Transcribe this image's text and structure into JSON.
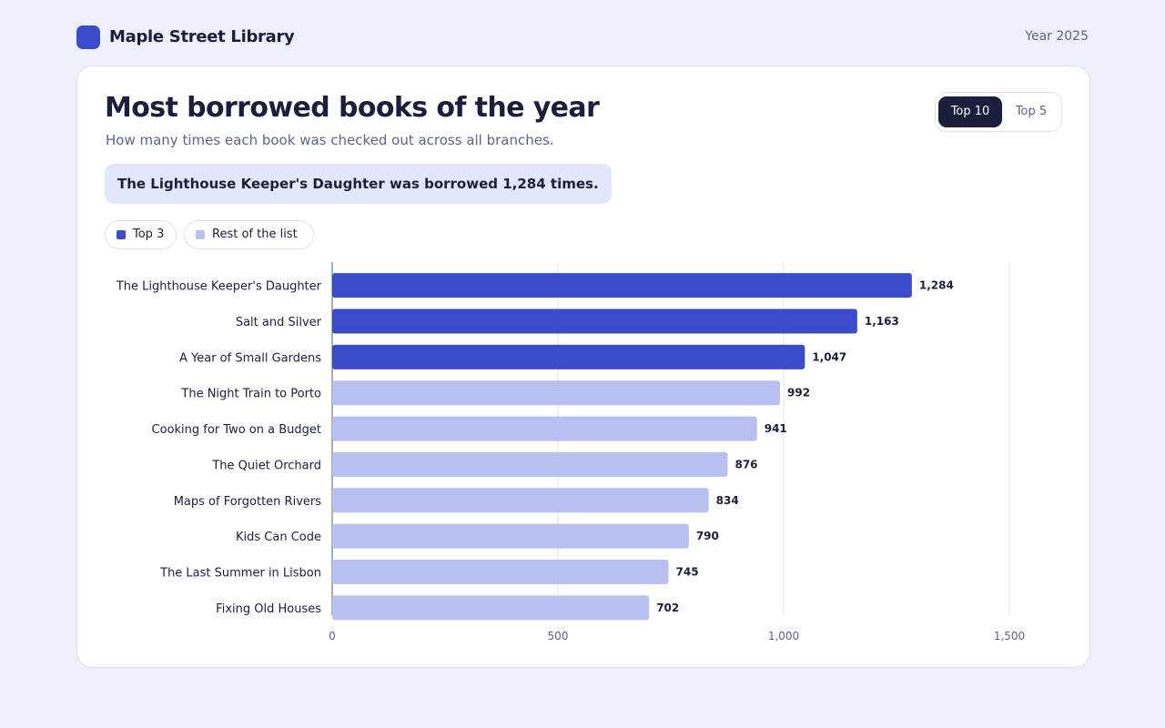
{
  "header": {
    "app_title": "Maple Street Library",
    "year_label": "Year 2025"
  },
  "card": {
    "title": "Most borrowed books of the year",
    "subtitle": "How many times each book was checked out across all branches.",
    "callout": "The Lighthouse Keeper's Daughter was borrowed 1,284 times."
  },
  "toggle": {
    "options": [
      "Top 10",
      "Top 5"
    ],
    "selected": "Top 10"
  },
  "legend": {
    "items": [
      {
        "label": "Top 3",
        "color": "#3b4cca"
      },
      {
        "label": "Rest of the list",
        "color": "#b8c0ef"
      }
    ]
  },
  "colors": {
    "accent": "#3b4cca",
    "accent_light": "#b8c0ef",
    "text": "#1b1f3b",
    "muted": "#5d6587"
  },
  "chart_data": {
    "type": "bar",
    "orientation": "horizontal",
    "categories": [
      "The Lighthouse Keeper's Daughter",
      "Salt and Silver",
      "A Year of Small Gardens",
      "The Night Train to Porto",
      "Cooking for Two on a Budget",
      "The Quiet Orchard",
      "Maps of Forgotten Rivers",
      "Kids Can Code",
      "The Last Summer in Lisbon",
      "Fixing Old Houses"
    ],
    "values": [
      1284,
      1163,
      1047,
      992,
      941,
      876,
      834,
      790,
      745,
      702
    ],
    "value_labels": [
      "1,284",
      "1,163",
      "1,047",
      "992",
      "941",
      "876",
      "834",
      "790",
      "745",
      "702"
    ],
    "highlight_count": 3,
    "xlim": [
      0,
      1500
    ],
    "xticks": [
      0,
      500,
      1000,
      1500
    ],
    "xtick_labels": [
      "0",
      "500",
      "1,000",
      "1,500"
    ],
    "grid": true,
    "legend_position": "top-left"
  }
}
